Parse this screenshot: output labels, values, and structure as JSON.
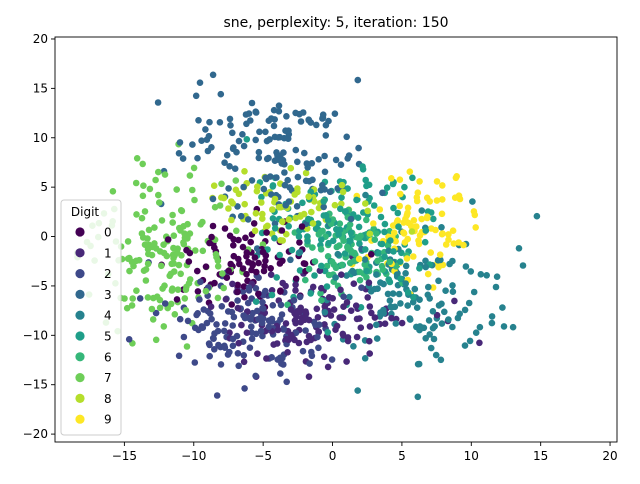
{
  "chart_data": {
    "type": "scatter",
    "title": "sne, perplexity: 5, iteration: 150",
    "xlabel": "",
    "ylabel": "",
    "xlim": [
      -20,
      20.5
    ],
    "ylim": [
      -20.8,
      20.2
    ],
    "xticks": [
      -15,
      -10,
      -5,
      0,
      5,
      10,
      15,
      20
    ],
    "yticks": [
      -20,
      -15,
      -10,
      -5,
      0,
      5,
      10,
      15,
      20
    ],
    "grid": false,
    "legend": {
      "title": "Digit",
      "placement": "left",
      "entries": [
        "0",
        "1",
        "2",
        "3",
        "4",
        "5",
        "6",
        "7",
        "8",
        "9"
      ]
    },
    "colors": [
      "#440154",
      "#482878",
      "#3e4989",
      "#31688e",
      "#26828e",
      "#1f9e89",
      "#35b779",
      "#6ece58",
      "#b5de2b",
      "#fde725"
    ],
    "clusters": [
      {
        "digit": "0",
        "count": 95,
        "center": [
          -6,
          -2.5
        ],
        "spread": [
          3.2,
          3.2
        ]
      },
      {
        "digit": "1",
        "count": 140,
        "center": [
          -1.5,
          -8
        ],
        "spread": [
          5.0,
          2.8
        ]
      },
      {
        "digit": "2",
        "count": 150,
        "center": [
          -6,
          -9
        ],
        "spread": [
          4.2,
          3.0
        ]
      },
      {
        "digit": "3",
        "count": 160,
        "center": [
          -4,
          8
        ],
        "spread": [
          4.5,
          5.0
        ]
      },
      {
        "digit": "4",
        "count": 140,
        "center": [
          6,
          -6
        ],
        "spread": [
          4.5,
          4.5
        ]
      },
      {
        "digit": "5",
        "count": 160,
        "center": [
          1,
          0
        ],
        "spread": [
          4.5,
          4.2
        ]
      },
      {
        "digit": "6",
        "count": 95,
        "center": [
          1,
          -1.5
        ],
        "spread": [
          2.8,
          2.8
        ]
      },
      {
        "digit": "7",
        "count": 170,
        "center": [
          -12,
          -1
        ],
        "spread": [
          3.8,
          5.5
        ]
      },
      {
        "digit": "8",
        "count": 80,
        "center": [
          -3,
          3
        ],
        "spread": [
          3.5,
          2.3
        ]
      },
      {
        "digit": "9",
        "count": 90,
        "center": [
          6,
          1
        ],
        "spread": [
          2.8,
          3.0
        ]
      }
    ]
  }
}
